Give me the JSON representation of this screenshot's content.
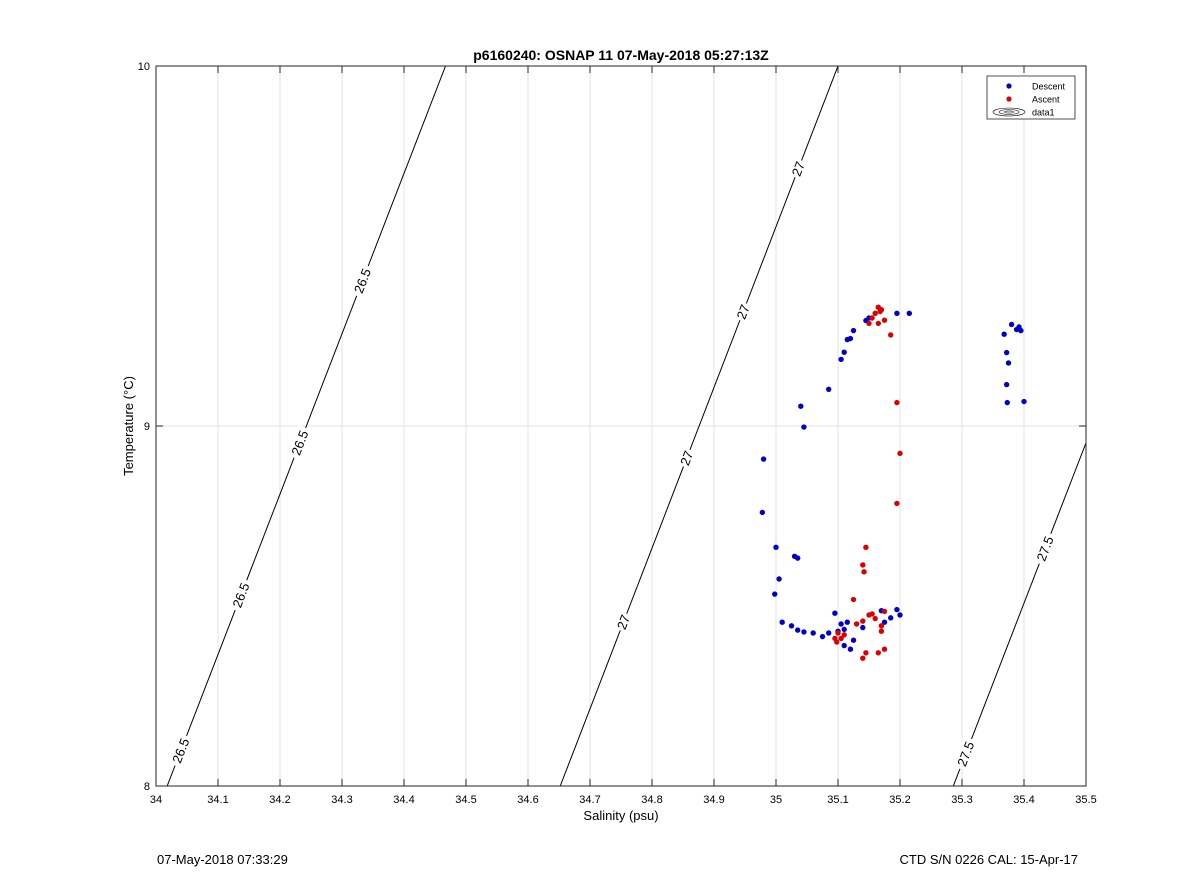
{
  "chart_data": {
    "type": "scatter",
    "title": "p6160240: OSNAP 11 07-May-2018 05:27:13Z",
    "xlabel": "Salinity (psu)",
    "ylabel": "Temperature (°C)",
    "xlim": [
      34,
      35.5
    ],
    "ylim": [
      8,
      10
    ],
    "x_ticks": [
      "34",
      "34.1",
      "34.2",
      "34.3",
      "34.4",
      "34.5",
      "34.6",
      "34.7",
      "34.8",
      "34.9",
      "35",
      "35.1",
      "35.2",
      "35.3",
      "35.4",
      "35.5"
    ],
    "y_ticks": [
      "8",
      "9",
      "10"
    ],
    "grid": true,
    "legend_position": "top-right",
    "legend": [
      "Descent",
      "Ascent",
      "data1"
    ],
    "colors": {
      "descent": "#0000cc",
      "ascent": "#dd0000",
      "contour": "#000000",
      "grid": "#e3e3e3"
    },
    "contours": [
      {
        "label": "26.5",
        "x0": 34.018,
        "x1": 34.467,
        "label_pos": [
          34.04,
          34.137,
          34.232,
          34.333
        ]
      },
      {
        "label": "27",
        "x0": 34.652,
        "x1": 35.1,
        "label_pos": [
          34.754,
          34.856,
          34.947,
          35.036
        ]
      },
      {
        "label": "27.5",
        "x0": 35.286,
        "x1": 35.735,
        "label_pos": [
          35.306,
          35.434
        ]
      }
    ],
    "series": [
      {
        "name": "Descent",
        "x": [
          35.215,
          35.195,
          35.15,
          35.145,
          35.125,
          35.12,
          35.115,
          35.11,
          35.105,
          35.085,
          35.04,
          35.045,
          34.98,
          34.978,
          35.0,
          35.03,
          35.035,
          35.005,
          34.998,
          35.01,
          35.025,
          35.035,
          35.045,
          35.06,
          35.075,
          35.085,
          35.1,
          35.11,
          35.115,
          35.125,
          35.14,
          35.17,
          35.175,
          35.185,
          35.195,
          35.2,
          35.11,
          35.12,
          35.095,
          35.105,
          35.38,
          35.392,
          35.368,
          35.388,
          35.395,
          35.372,
          35.375,
          35.372,
          35.373,
          35.4
        ],
        "y": [
          9.313,
          9.313,
          9.3,
          9.293,
          9.265,
          9.243,
          9.24,
          9.205,
          9.185,
          9.102,
          9.055,
          8.997,
          8.908,
          8.76,
          8.663,
          8.638,
          8.633,
          8.575,
          8.533,
          8.455,
          8.445,
          8.433,
          8.428,
          8.425,
          8.415,
          8.425,
          8.43,
          8.435,
          8.455,
          8.405,
          8.44,
          8.487,
          8.455,
          8.467,
          8.49,
          8.475,
          8.39,
          8.38,
          8.48,
          8.45,
          9.282,
          9.275,
          9.255,
          9.268,
          9.265,
          9.204,
          9.175,
          9.115,
          9.065,
          9.068
        ]
      },
      {
        "name": "Ascent",
        "x": [
          35.165,
          35.17,
          35.168,
          35.16,
          35.155,
          35.15,
          35.175,
          35.165,
          35.185,
          35.195,
          35.2,
          35.195,
          35.145,
          35.14,
          35.142,
          35.125,
          35.14,
          35.13,
          35.15,
          35.155,
          35.16,
          35.175,
          35.17,
          35.1,
          35.105,
          35.095,
          35.098,
          35.11,
          35.14,
          35.165,
          35.175,
          35.17,
          35.145
        ],
        "y": [
          9.33,
          9.323,
          9.318,
          9.313,
          9.3,
          9.285,
          9.294,
          9.285,
          9.253,
          9.065,
          8.924,
          8.785,
          8.663,
          8.614,
          8.595,
          8.518,
          8.458,
          8.45,
          8.475,
          8.478,
          8.465,
          8.485,
          8.445,
          8.425,
          8.41,
          8.41,
          8.4,
          8.42,
          8.355,
          8.37,
          8.38,
          8.43,
          8.37
        ]
      }
    ]
  },
  "footer": {
    "left": "07-May-2018 07:33:29",
    "right": "CTD S/N 0226  CAL: 15-Apr-17"
  }
}
